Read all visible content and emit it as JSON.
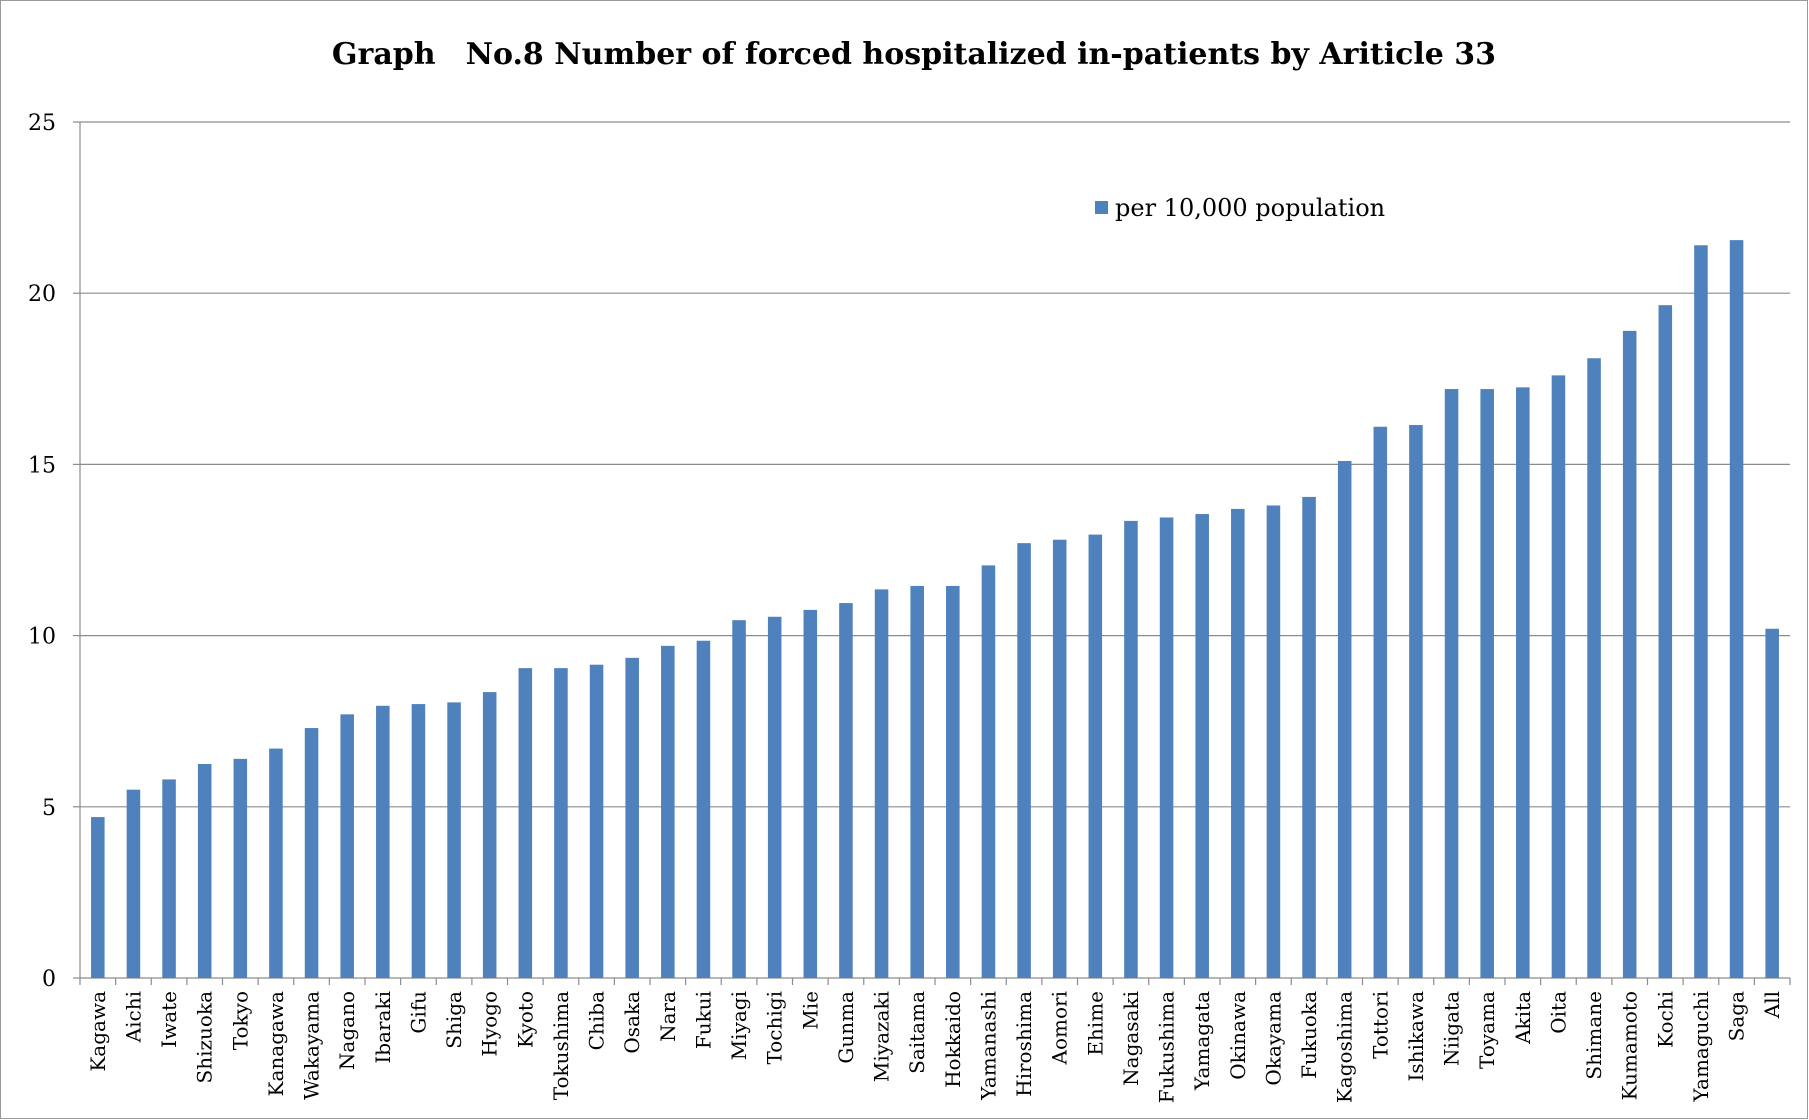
{
  "chart_data": {
    "type": "bar",
    "title": "Graph　No.8  Number of forced  hospitalized in-patients by Ariticle 33",
    "xlabel": "",
    "ylabel": "",
    "ylim": [
      0,
      25
    ],
    "yticks": [
      "0",
      "5",
      "10",
      "15",
      "20",
      "25"
    ],
    "grid": true,
    "legend_position": "top-right",
    "bar_color": "#4f81bd",
    "categories": [
      "Kagawa",
      "Aichi",
      "Iwate",
      "Shizuoka",
      "Tokyo",
      "Kanagawa",
      "Wakayama",
      "Nagano",
      "Ibaraki",
      "Gifu",
      "Shiga",
      "Hyogo",
      "Kyoto",
      "Tokushima",
      "Chiba",
      "Osaka",
      "Nara",
      "Fukui",
      "Miyagi",
      "Tochigi",
      "Mie",
      "Gunma",
      "Miyazaki",
      "Saitama",
      "Hokkaido",
      "Yamanashi",
      "Hiroshima",
      "Aomori",
      "Ehime",
      "Nagasaki",
      "Fukushima",
      "Yamagata",
      "Okinawa",
      "Okayama",
      "Fukuoka",
      "Kagoshima",
      "Tottori",
      "Ishikawa",
      "Niigata",
      "Toyama",
      "Akita",
      "Oita",
      "Shimane",
      "Kumamoto",
      "Kochi",
      "Yamaguchi",
      "Saga",
      "All"
    ],
    "series": [
      {
        "name": "per 10,000 population",
        "values": [
          4.7,
          5.5,
          5.8,
          6.25,
          6.4,
          6.7,
          7.3,
          7.7,
          7.95,
          8.0,
          8.05,
          8.35,
          9.05,
          9.05,
          9.15,
          9.35,
          9.7,
          9.85,
          10.45,
          10.55,
          10.75,
          10.95,
          11.35,
          11.45,
          11.45,
          12.05,
          12.7,
          12.8,
          12.95,
          13.35,
          13.45,
          13.55,
          13.7,
          13.8,
          14.05,
          15.1,
          16.1,
          16.15,
          17.2,
          17.2,
          17.25,
          17.6,
          18.1,
          18.9,
          19.65,
          21.4,
          21.55,
          10.2
        ]
      }
    ]
  }
}
